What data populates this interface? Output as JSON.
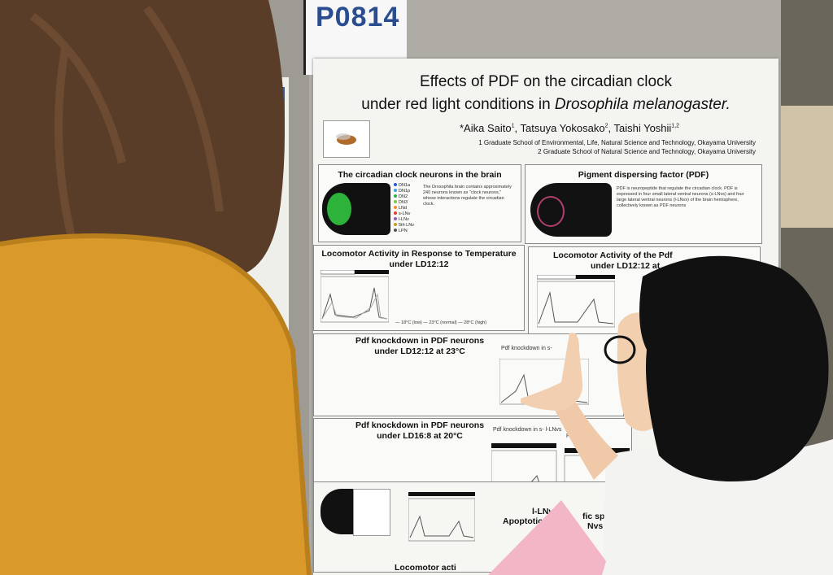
{
  "poster_id": "P0814",
  "poster": {
    "title": [
      "Effects of PDF on the circadian clock",
      "under red light conditions in ",
      "Drosophila melanogaster."
    ],
    "authors": [
      {
        "name": "*Aika Saito",
        "sup": "1"
      },
      {
        "name": "Tatsuya Yokosako",
        "sup": "2"
      },
      {
        "name": "Taishi Yoshii",
        "sup": "1,2"
      }
    ],
    "affiliations": [
      "1 Graduate School of Environmental, Life, Natural Science and Technology, Okayama University",
      "2 Graduate School of Natural Science and Technology, Okayama University"
    ],
    "sections": [
      {
        "heading": [
          "The circadian clock neurons in the brain"
        ],
        "body": "The Drosophila brain contains approximately 240 neurons known as \"clock neurons,\" whose interactions regulate the circadian clock.",
        "legend": [
          "DN1a",
          "DN1p",
          "DN2",
          "DN3",
          "LNd",
          "s-LNv",
          "l-LNv",
          "5th LNv",
          "LPN"
        ]
      },
      {
        "heading": [
          "Pigment dispersing factor (PDF)"
        ],
        "body": "PDF is neuropeptide that regulate the circadian clock. PDF is expressed in four small lateral ventral neurons (s-LNvs) and four large lateral ventral neurons (l-LNvs) of the brain hemisphere, collectively known as PDF neurons"
      },
      {
        "heading": [
          "Locomotor Activity in Response to Temperature",
          "under LD12:12"
        ],
        "legend": [
          "— 18°C (low)",
          "— 23°C (normal)",
          "— 28°C (high)"
        ]
      },
      {
        "heading": [
          "Locomotor Activity of the Pdf",
          "under LD12:12 at"
        ]
      },
      {
        "heading": [
          "Pdf knockdown in PDF neurons",
          "under LD12:12 at 23°C"
        ],
        "plot_titles": [
          "Pdf knockdown in s-"
        ]
      },
      {
        "heading": [
          "Pdf knockdown in PDF neurons",
          "under LD16:8 at 20°C"
        ],
        "plot_titles": [
          "Pdf knockdown in s- l-LNvs",
          "Pdf k"
        ]
      },
      {
        "heading": [
          "l-LNv",
          "Apoptotic",
          "fic split-Gal",
          "Nvs und"
        ]
      },
      {
        "heading": [
          "Locomotor acti"
        ]
      }
    ]
  }
}
